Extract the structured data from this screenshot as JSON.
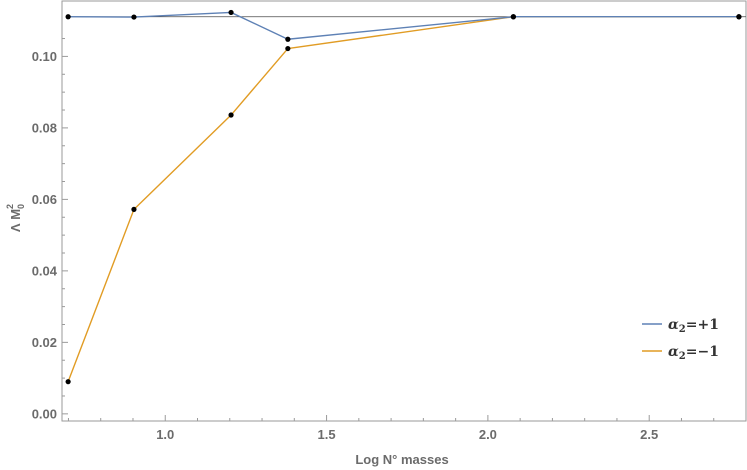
{
  "chart_data": {
    "type": "line",
    "xlabel": "Log  N° masses",
    "ylabel_main": "Λ M",
    "ylabel_sup": "2",
    "ylabel_sub": "0",
    "xlim": [
      0.68,
      2.8
    ],
    "ylim": [
      -0.002,
      0.1155
    ],
    "x_ticks": [
      1.0,
      1.5,
      2.0,
      2.5
    ],
    "x_tick_labels": [
      "1.0",
      "1.5",
      "2.0",
      "2.5"
    ],
    "y_ticks": [
      0.0,
      0.02,
      0.04,
      0.06,
      0.08,
      0.1
    ],
    "y_tick_labels": [
      "0.00",
      "0.02",
      "0.04",
      "0.06",
      "0.08",
      "0.10"
    ],
    "reference_line_y": 0.1111,
    "grid": false,
    "legend_position": "right",
    "series": [
      {
        "name_base": "α",
        "name_sub": "2",
        "name_tail": "=+1",
        "color": "#5e81b5",
        "x": [
          0.699,
          0.903,
          1.204,
          1.38,
          2.079,
          2.778
        ],
        "y": [
          0.1111,
          0.111,
          0.1123,
          0.1048,
          0.1111,
          0.1111
        ]
      },
      {
        "name_base": "α",
        "name_sub": "2",
        "name_tail": "=−1",
        "color": "#e19c24",
        "x": [
          0.699,
          0.903,
          1.204,
          1.38,
          2.079,
          2.778
        ],
        "y": [
          0.009,
          0.0572,
          0.0836,
          0.1022,
          0.1111,
          0.1111
        ]
      }
    ],
    "marker_color": "#000000",
    "reference_line_color": "#4a4a4a",
    "frame_color": "#9a9a9a"
  }
}
